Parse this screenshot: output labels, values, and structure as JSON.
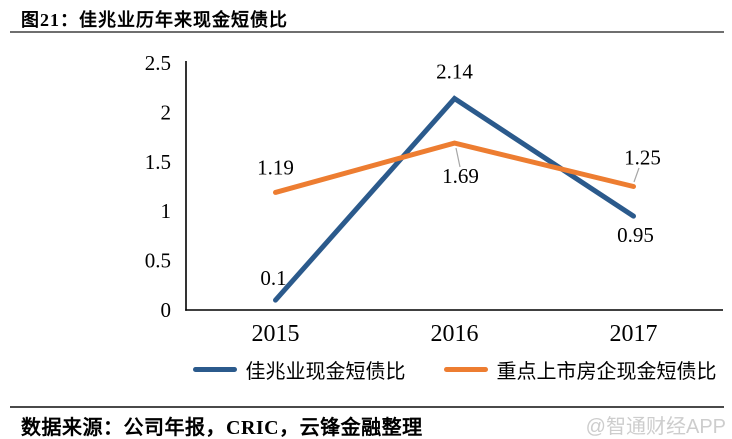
{
  "header": {
    "title": "图21：佳兆业历年来现金短债比"
  },
  "footer": {
    "source": "数据来源：公司年报，CRIC，云锋金融整理",
    "watermark": "@智通财经APP"
  },
  "chart_data": {
    "type": "line",
    "title": "图21：佳兆业历年来现金短债比",
    "categories": [
      "2015",
      "2016",
      "2017"
    ],
    "series": [
      {
        "name": "佳兆业现金短债比",
        "values": [
          0.1,
          2.14,
          0.95
        ],
        "labels": [
          "0.1",
          "2.14",
          "0.95"
        ],
        "color": "#2B5A8C"
      },
      {
        "name": "重点上市房企现金短债比",
        "values": [
          1.19,
          1.69,
          1.25
        ],
        "labels": [
          "1.19",
          "1.69",
          "1.25"
        ],
        "color": "#ED7D31"
      }
    ],
    "xlabel": "",
    "ylabel": "",
    "ylim": [
      0,
      2.5
    ],
    "yticks": [
      0,
      0.5,
      1,
      1.5,
      2,
      2.5
    ],
    "ytick_labels": [
      "0",
      "0.5",
      "1",
      "1.5",
      "2",
      "2.5"
    ],
    "grid": false,
    "legend_position": "bottom",
    "axis_color": "#000000",
    "leader_line_color": "#a6a6a6"
  }
}
